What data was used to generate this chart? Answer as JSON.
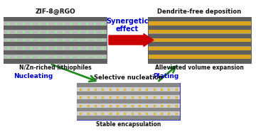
{
  "title": "ZIF-8@RGO",
  "subtitle_left": "N/Zn-riched lithiophiles",
  "title_right_top": "Dendrite-free deposition",
  "subtitle_right_top": "Alleviated volume expansion",
  "title_bottom": "Selective nucleation",
  "subtitle_bottom": "Stable encapsulation",
  "arrow_synergetic_text": "Synergetic\neffect",
  "arrow_nucleating_text": "Nucleating",
  "arrow_plating_text": "Plating",
  "scaffold_dark": "#606060",
  "scaffold_mid": "#909090",
  "scaffold_bg": "#aaaaaa",
  "li_green": "#90EE90",
  "li_gold": "#DAA520",
  "arrow_red": "#cc0000",
  "arrow_green": "#228B22",
  "text_blue": "#0000cc",
  "text_black": "#111111",
  "scaffold_edge": "#555555",
  "bottom_edge": "#3333aa"
}
